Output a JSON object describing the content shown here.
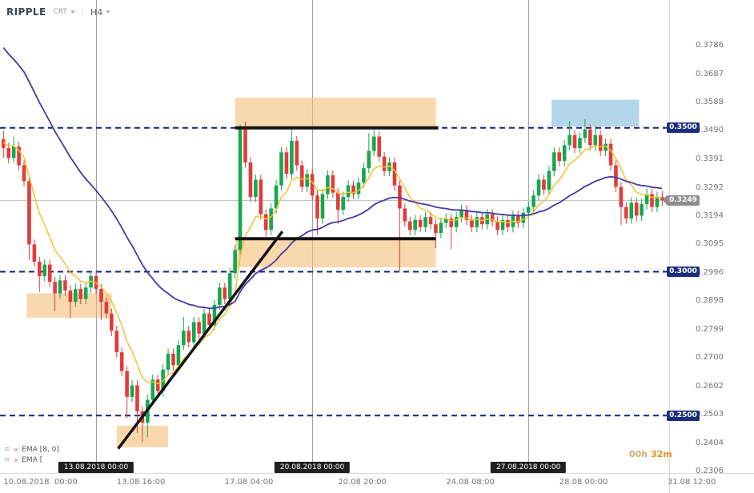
{
  "header": {
    "symbol": "RIPPLE",
    "chart_type": "CRT",
    "timeframe": "H4"
  },
  "legend": {
    "items": [
      {
        "label": "EMA [8, 0]"
      },
      {
        "label": "EMA ["
      }
    ]
  },
  "countdown": {
    "hours": "00h",
    "minutes": "32m"
  },
  "current_price": {
    "value": "0.3249",
    "price": 0.3249
  },
  "levels": [
    {
      "value": "0.3500",
      "price": 0.35
    },
    {
      "value": "0.3000",
      "price": 0.3
    },
    {
      "value": "0.2500",
      "price": 0.25
    }
  ],
  "price_axis": {
    "labels": [
      "0.3786",
      "0.3687",
      "0.3588",
      "0.3490",
      "0.3391",
      "0.3292",
      "0.3194",
      "0.3095",
      "0.2996",
      "0.2898",
      "0.2799",
      "0.2700",
      "0.2602",
      "0.2503",
      "0.2404",
      "0.2306"
    ]
  },
  "time_axis": {
    "labels": [
      {
        "text": "10.08.2018  00:00",
        "i": 0
      },
      {
        "text": "13.08 16:00",
        "i": 22
      },
      {
        "text": "17.08 04:00",
        "i": 43
      },
      {
        "text": "20.08 20:00",
        "i": 65
      },
      {
        "text": "24.08 08:00",
        "i": 86
      },
      {
        "text": "28.08 00:00",
        "i": 108
      },
      {
        "text": "31.08 12:00",
        "i": 129
      }
    ]
  },
  "session_markers": [
    {
      "text": "13.08.2018 00:00",
      "i": 18
    },
    {
      "text": "20.08.2018 00:00",
      "i": 60
    },
    {
      "text": "27.08.2018 00:00",
      "i": 102
    }
  ],
  "colors": {
    "candle_up": "#17a74e",
    "candle_down": "#e23b3b",
    "ema_fast": "#f2c22e",
    "ema_slow": "#4438a6",
    "level_line": "#16227a",
    "level_tag": "#1c2e7b",
    "current_tag": "#8e8e8e",
    "zone_orange": "rgba(247,190,120,0.6)",
    "zone_blue": "rgba(130,186,222,0.6)",
    "drawing": "#141414",
    "session_line": "#9f9f9f",
    "current_line": "#c4c4c4",
    "axis_line": "#d9d9d9"
  },
  "chart_data": {
    "type": "candlestick",
    "title": "RIPPLE H4 candlestick chart",
    "symbol": "RIPPLE",
    "timeframe": "H4",
    "x_start": "10.08.2018 00:00",
    "x_end": "31.08.2018 12:00",
    "y_range": [
      0.2306,
      0.3786
    ],
    "grid": "off",
    "hlines_dashed": [
      0.35,
      0.3,
      0.25
    ],
    "current_price": 0.3249,
    "candles": [
      [
        0.346,
        0.349,
        0.3395,
        0.343
      ],
      [
        0.343,
        0.3448,
        0.3377,
        0.3395
      ],
      [
        0.3395,
        0.347,
        0.338,
        0.3435
      ],
      [
        0.3435,
        0.3452,
        0.3352,
        0.337
      ],
      [
        0.337,
        0.3388,
        0.3297,
        0.3315
      ],
      [
        0.3315,
        0.333,
        0.304,
        0.3095
      ],
      [
        0.3095,
        0.3112,
        0.3017,
        0.3035
      ],
      [
        0.3035,
        0.3052,
        0.293,
        0.2985
      ],
      [
        0.2985,
        0.3043,
        0.2967,
        0.3025
      ],
      [
        0.3025,
        0.3042,
        0.2947,
        0.2965
      ],
      [
        0.2965,
        0.2982,
        0.2862,
        0.2925
      ],
      [
        0.2925,
        0.2988,
        0.2907,
        0.297
      ],
      [
        0.297,
        0.2988,
        0.2917,
        0.2935
      ],
      [
        0.2935,
        0.2952,
        0.284,
        0.2895
      ],
      [
        0.2895,
        0.2958,
        0.2877,
        0.294
      ],
      [
        0.294,
        0.2957,
        0.2887,
        0.2905
      ],
      [
        0.2905,
        0.2963,
        0.2887,
        0.2945
      ],
      [
        0.2945,
        0.3003,
        0.2927,
        0.2985
      ],
      [
        0.2985,
        0.3002,
        0.2922,
        0.294
      ],
      [
        0.294,
        0.2957,
        0.2832,
        0.2895
      ],
      [
        0.2895,
        0.2912,
        0.2837,
        0.2855
      ],
      [
        0.2855,
        0.2872,
        0.2777,
        0.2795
      ],
      [
        0.2795,
        0.2812,
        0.2702,
        0.272
      ],
      [
        0.272,
        0.2737,
        0.2637,
        0.2655
      ],
      [
        0.2655,
        0.2672,
        0.249,
        0.2565
      ],
      [
        0.2565,
        0.2623,
        0.2547,
        0.2605
      ],
      [
        0.2605,
        0.2622,
        0.244,
        0.2515
      ],
      [
        0.2515,
        0.2532,
        0.2408,
        0.2475
      ],
      [
        0.2475,
        0.2573,
        0.2425,
        0.2555
      ],
      [
        0.2555,
        0.2643,
        0.2537,
        0.2625
      ],
      [
        0.2625,
        0.2642,
        0.2567,
        0.2585
      ],
      [
        0.2585,
        0.2678,
        0.2567,
        0.266
      ],
      [
        0.266,
        0.2733,
        0.2642,
        0.2715
      ],
      [
        0.2715,
        0.2732,
        0.2657,
        0.2675
      ],
      [
        0.2675,
        0.2763,
        0.2657,
        0.2745
      ],
      [
        0.2745,
        0.2843,
        0.2727,
        0.2795
      ],
      [
        0.2795,
        0.2812,
        0.2737,
        0.2755
      ],
      [
        0.2755,
        0.2843,
        0.2737,
        0.2825
      ],
      [
        0.2825,
        0.2842,
        0.2767,
        0.2785
      ],
      [
        0.2785,
        0.2873,
        0.2767,
        0.2855
      ],
      [
        0.2855,
        0.2872,
        0.2797,
        0.2815
      ],
      [
        0.2815,
        0.2903,
        0.2797,
        0.2885
      ],
      [
        0.2885,
        0.2963,
        0.2867,
        0.2945
      ],
      [
        0.2945,
        0.2962,
        0.2887,
        0.2905
      ],
      [
        0.2905,
        0.3013,
        0.2887,
        0.2995
      ],
      [
        0.2995,
        0.3093,
        0.2977,
        0.3075
      ],
      [
        0.3075,
        0.3512,
        0.3055,
        0.3495
      ],
      [
        0.3495,
        0.3522,
        0.3362,
        0.338
      ],
      [
        0.338,
        0.3398,
        0.3242,
        0.326
      ],
      [
        0.326,
        0.3338,
        0.3242,
        0.332
      ],
      [
        0.332,
        0.3337,
        0.3182,
        0.32
      ],
      [
        0.32,
        0.3217,
        0.3122,
        0.3145
      ],
      [
        0.3145,
        0.3238,
        0.3127,
        0.322
      ],
      [
        0.322,
        0.3318,
        0.3202,
        0.33
      ],
      [
        0.33,
        0.3433,
        0.3282,
        0.3415
      ],
      [
        0.3415,
        0.3432,
        0.3322,
        0.334
      ],
      [
        0.334,
        0.3497,
        0.3322,
        0.3455
      ],
      [
        0.3455,
        0.3472,
        0.3352,
        0.337
      ],
      [
        0.337,
        0.3387,
        0.3277,
        0.3295
      ],
      [
        0.3295,
        0.3358,
        0.3277,
        0.334
      ],
      [
        0.334,
        0.3357,
        0.3247,
        0.3265
      ],
      [
        0.3265,
        0.3282,
        0.3128,
        0.3185
      ],
      [
        0.3185,
        0.3288,
        0.3167,
        0.327
      ],
      [
        0.327,
        0.3353,
        0.3252,
        0.3335
      ],
      [
        0.3335,
        0.3352,
        0.3257,
        0.3275
      ],
      [
        0.3275,
        0.3292,
        0.3165,
        0.3215
      ],
      [
        0.3215,
        0.3278,
        0.3197,
        0.326
      ],
      [
        0.326,
        0.3318,
        0.3242,
        0.33
      ],
      [
        0.33,
        0.3317,
        0.3252,
        0.327
      ],
      [
        0.327,
        0.3328,
        0.3252,
        0.331
      ],
      [
        0.331,
        0.3378,
        0.3292,
        0.336
      ],
      [
        0.336,
        0.3482,
        0.3342,
        0.342
      ],
      [
        0.342,
        0.3493,
        0.3402,
        0.347
      ],
      [
        0.347,
        0.3487,
        0.3382,
        0.34
      ],
      [
        0.34,
        0.3417,
        0.3332,
        0.335
      ],
      [
        0.335,
        0.3398,
        0.3332,
        0.338
      ],
      [
        0.338,
        0.3397,
        0.3282,
        0.33
      ],
      [
        0.33,
        0.3317,
        0.3002,
        0.322
      ],
      [
        0.322,
        0.3237,
        0.3157,
        0.3175
      ],
      [
        0.3175,
        0.3192,
        0.3127,
        0.3145
      ],
      [
        0.3145,
        0.3198,
        0.3127,
        0.318
      ],
      [
        0.318,
        0.3197,
        0.3137,
        0.3155
      ],
      [
        0.3155,
        0.3208,
        0.3137,
        0.319
      ],
      [
        0.319,
        0.3207,
        0.3147,
        0.3165
      ],
      [
        0.3165,
        0.3182,
        0.3082,
        0.3135
      ],
      [
        0.3135,
        0.3188,
        0.3117,
        0.317
      ],
      [
        0.317,
        0.3203,
        0.3152,
        0.3185
      ],
      [
        0.3185,
        0.3202,
        0.3078,
        0.3155
      ],
      [
        0.3155,
        0.3208,
        0.3137,
        0.319
      ],
      [
        0.319,
        0.3233,
        0.3172,
        0.3215
      ],
      [
        0.3215,
        0.3232,
        0.3162,
        0.318
      ],
      [
        0.318,
        0.3197,
        0.3137,
        0.3155
      ],
      [
        0.3155,
        0.3208,
        0.3137,
        0.319
      ],
      [
        0.319,
        0.3207,
        0.3147,
        0.3165
      ],
      [
        0.3165,
        0.3218,
        0.3147,
        0.32
      ],
      [
        0.32,
        0.3217,
        0.3157,
        0.3175
      ],
      [
        0.3175,
        0.3192,
        0.3127,
        0.3145
      ],
      [
        0.3145,
        0.3198,
        0.3127,
        0.318
      ],
      [
        0.318,
        0.3197,
        0.3137,
        0.3155
      ],
      [
        0.3155,
        0.3213,
        0.3137,
        0.3195
      ],
      [
        0.3195,
        0.3212,
        0.3152,
        0.317
      ],
      [
        0.317,
        0.3223,
        0.3152,
        0.3205
      ],
      [
        0.3205,
        0.3243,
        0.3187,
        0.3225
      ],
      [
        0.3225,
        0.3283,
        0.3207,
        0.3265
      ],
      [
        0.3265,
        0.3338,
        0.3247,
        0.332
      ],
      [
        0.332,
        0.3337,
        0.3267,
        0.3285
      ],
      [
        0.3285,
        0.3368,
        0.3267,
        0.335
      ],
      [
        0.335,
        0.3433,
        0.3332,
        0.3415
      ],
      [
        0.3415,
        0.3432,
        0.3367,
        0.3385
      ],
      [
        0.3385,
        0.3458,
        0.3367,
        0.344
      ],
      [
        0.344,
        0.3524,
        0.3422,
        0.3475
      ],
      [
        0.3475,
        0.3492,
        0.3412,
        0.343
      ],
      [
        0.343,
        0.3483,
        0.3412,
        0.3465
      ],
      [
        0.3465,
        0.3531,
        0.3447,
        0.3495
      ],
      [
        0.3495,
        0.3512,
        0.3422,
        0.344
      ],
      [
        0.344,
        0.3508,
        0.3422,
        0.3475
      ],
      [
        0.3475,
        0.3492,
        0.3402,
        0.342
      ],
      [
        0.342,
        0.3463,
        0.3402,
        0.3445
      ],
      [
        0.3445,
        0.3462,
        0.3352,
        0.337
      ],
      [
        0.337,
        0.3387,
        0.3277,
        0.3295
      ],
      [
        0.3295,
        0.3312,
        0.3162,
        0.3225
      ],
      [
        0.3225,
        0.3242,
        0.3167,
        0.3185
      ],
      [
        0.3185,
        0.3258,
        0.3167,
        0.324
      ],
      [
        0.324,
        0.3257,
        0.3177,
        0.3195
      ],
      [
        0.3195,
        0.3253,
        0.3177,
        0.3235
      ],
      [
        0.3235,
        0.3288,
        0.3217,
        0.327
      ],
      [
        0.327,
        0.3287,
        0.3207,
        0.3225
      ],
      [
        0.3225,
        0.3278,
        0.3207,
        0.326
      ],
      [
        0.326,
        0.3281,
        0.3228,
        0.3249
      ]
    ],
    "indicators": [
      {
        "name": "EMA",
        "label": "EMA [8, 0]",
        "period": 8,
        "seed": 0.3455,
        "color": "#f2c22e",
        "width": 1.5
      },
      {
        "name": "EMA",
        "label": "EMA [",
        "period": 34,
        "seed": 0.38,
        "color": "#4438a6",
        "width": 1.8
      }
    ],
    "zones": [
      {
        "i1": 4.5,
        "i2": 21,
        "p1": 0.284,
        "p2": 0.2925,
        "color": "rgba(247,190,120,0.6)"
      },
      {
        "i1": 22,
        "i2": 32,
        "p1": 0.239,
        "p2": 0.2465,
        "color": "rgba(247,190,120,0.6)"
      },
      {
        "i1": 45,
        "i2": 84,
        "p1": 0.3015,
        "p2": 0.3115,
        "color": "rgba(247,190,120,0.6)"
      },
      {
        "i1": 45,
        "i2": 84,
        "p1": 0.3505,
        "p2": 0.3605,
        "color": "rgba(247,190,120,0.6)"
      },
      {
        "i1": 106.5,
        "i2": 123.5,
        "p1": 0.3505,
        "p2": 0.3598,
        "color": "rgba(130,186,222,0.6)"
      }
    ],
    "trendlines": [
      {
        "i1": 45,
        "p1": 0.35,
        "i2": 84.5,
        "p2": 0.35,
        "w": 4
      },
      {
        "i1": 45,
        "p1": 0.3115,
        "i2": 84,
        "p2": 0.3115,
        "w": 4
      },
      {
        "i1": 22.3,
        "p1": 0.2385,
        "i2": 54.2,
        "p2": 0.314,
        "w": 3.5
      }
    ]
  }
}
